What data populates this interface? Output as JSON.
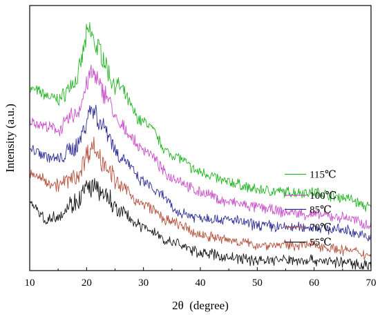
{
  "chart_data": {
    "type": "line",
    "title": "",
    "xlabel": "2θ  (degree)",
    "ylabel": "Intensity (a.u.)",
    "xlim": [
      10,
      70
    ],
    "x_ticks": [
      10,
      20,
      30,
      40,
      50,
      60,
      70
    ],
    "y_ticks_shown": false,
    "grid": false,
    "legend": "inline-right",
    "series": [
      {
        "name": "115℃",
        "color": "#22b422",
        "points": [
          [
            10,
            0.7
          ],
          [
            15,
            0.66
          ],
          [
            18,
            0.73
          ],
          [
            20.5,
            0.93
          ],
          [
            22,
            0.86
          ],
          [
            25,
            0.72
          ],
          [
            30,
            0.57
          ],
          [
            35,
            0.44
          ],
          [
            40,
            0.37
          ],
          [
            45,
            0.33
          ],
          [
            50,
            0.3
          ],
          [
            55,
            0.29
          ],
          [
            60,
            0.29
          ],
          [
            65,
            0.27
          ],
          [
            70,
            0.23
          ]
        ]
      },
      {
        "name": "100℃",
        "color": "#c850c8",
        "points": [
          [
            10,
            0.57
          ],
          [
            15,
            0.54
          ],
          [
            18,
            0.6
          ],
          [
            21,
            0.76
          ],
          [
            23,
            0.69
          ],
          [
            26,
            0.55
          ],
          [
            30,
            0.46
          ],
          [
            35,
            0.35
          ],
          [
            40,
            0.29
          ],
          [
            45,
            0.25
          ],
          [
            50,
            0.23
          ],
          [
            55,
            0.21
          ],
          [
            60,
            0.2
          ],
          [
            65,
            0.19
          ],
          [
            70,
            0.16
          ]
        ]
      },
      {
        "name": "85℃",
        "color": "#2d2d96",
        "points": [
          [
            10,
            0.46
          ],
          [
            15,
            0.42
          ],
          [
            18,
            0.47
          ],
          [
            21,
            0.62
          ],
          [
            23,
            0.55
          ],
          [
            26,
            0.43
          ],
          [
            30,
            0.33
          ],
          [
            33,
            0.28
          ],
          [
            36,
            0.21
          ],
          [
            40,
            0.19
          ],
          [
            45,
            0.18
          ],
          [
            50,
            0.16
          ],
          [
            55,
            0.15
          ],
          [
            60,
            0.15
          ],
          [
            65,
            0.14
          ],
          [
            70,
            0.11
          ]
        ]
      },
      {
        "name": "70℃",
        "color": "#b4503c",
        "points": [
          [
            10,
            0.36
          ],
          [
            15,
            0.32
          ],
          [
            18,
            0.35
          ],
          [
            21,
            0.47
          ],
          [
            23,
            0.41
          ],
          [
            26,
            0.31
          ],
          [
            30,
            0.24
          ],
          [
            35,
            0.17
          ],
          [
            40,
            0.12
          ],
          [
            45,
            0.1
          ],
          [
            50,
            0.08
          ],
          [
            55,
            0.08
          ],
          [
            60,
            0.08
          ],
          [
            65,
            0.06
          ],
          [
            70,
            0.04
          ]
        ]
      },
      {
        "name": "55℃",
        "color": "#141414",
        "points": [
          [
            10,
            0.25
          ],
          [
            13,
            0.18
          ],
          [
            15,
            0.2
          ],
          [
            18,
            0.25
          ],
          [
            20.5,
            0.31
          ],
          [
            23,
            0.28
          ],
          [
            26,
            0.21
          ],
          [
            30,
            0.15
          ],
          [
            35,
            0.09
          ],
          [
            40,
            0.05
          ],
          [
            45,
            0.03
          ],
          [
            50,
            0.02
          ],
          [
            55,
            0.02
          ],
          [
            60,
            0.02
          ],
          [
            65,
            0.01
          ],
          [
            70,
            0.0
          ]
        ]
      }
    ]
  }
}
